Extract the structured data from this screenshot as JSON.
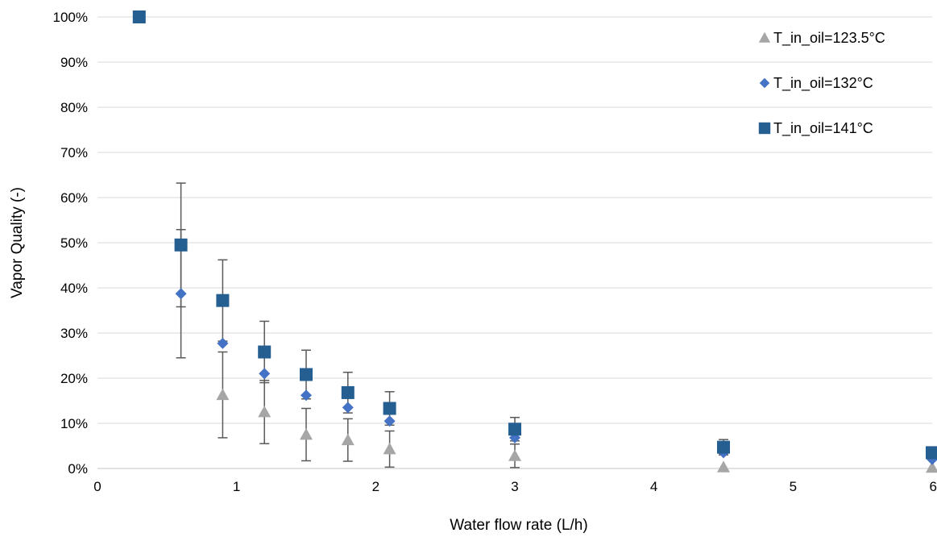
{
  "chart_data": {
    "type": "scatter",
    "title": "",
    "xlabel": "Water flow rate (L/h)",
    "ylabel": "Vapor Quality (-)",
    "xlim": [
      0,
      6
    ],
    "ylim": [
      0,
      1
    ],
    "x_ticks": [
      "0",
      "1",
      "2",
      "3",
      "4",
      "5",
      "6"
    ],
    "y_ticks": [
      "0%",
      "10%",
      "20%",
      "30%",
      "40%",
      "50%",
      "60%",
      "70%",
      "80%",
      "90%",
      "100%"
    ],
    "grid": "horizontal",
    "legend_position": "top-right",
    "series": [
      {
        "name": "T_in_oil=123.5°C",
        "marker": "triangle",
        "color": "#a6a6a6",
        "x": [
          0.9,
          1.2,
          1.5,
          1.8,
          2.1,
          3.0,
          4.5,
          6.0
        ],
        "y": [
          0.163,
          0.125,
          0.075,
          0.063,
          0.043,
          0.028,
          0.003,
          0.002
        ],
        "error": [
          0.095,
          0.07,
          0.058,
          0.047,
          0.04,
          0.026,
          0.0,
          0.0
        ]
      },
      {
        "name": "T_in_oil=132°C",
        "marker": "diamond",
        "color": "#4472c4",
        "x": [
          0.6,
          0.9,
          1.2,
          1.5,
          1.8,
          2.1,
          3.0,
          4.5,
          6.0
        ],
        "y": [
          0.387,
          0.277,
          0.21,
          0.162,
          0.135,
          0.105,
          0.068,
          0.035,
          0.02
        ],
        "error": [
          0.142,
          0.0,
          0.0,
          0.0,
          0.0,
          0.0,
          0.0,
          0.0,
          0.0
        ]
      },
      {
        "name": "T_in_oil=141°C",
        "marker": "square",
        "color": "#255e91",
        "x": [
          0.3,
          0.6,
          0.9,
          1.2,
          1.5,
          1.8,
          2.1,
          3.0,
          4.5,
          6.0
        ],
        "y": [
          1.0,
          0.495,
          0.372,
          0.258,
          0.208,
          0.168,
          0.133,
          0.087,
          0.047,
          0.035
        ],
        "error": [
          0.0,
          0.137,
          0.09,
          0.068,
          0.054,
          0.045,
          0.037,
          0.026,
          0.017,
          0.011
        ]
      }
    ]
  }
}
